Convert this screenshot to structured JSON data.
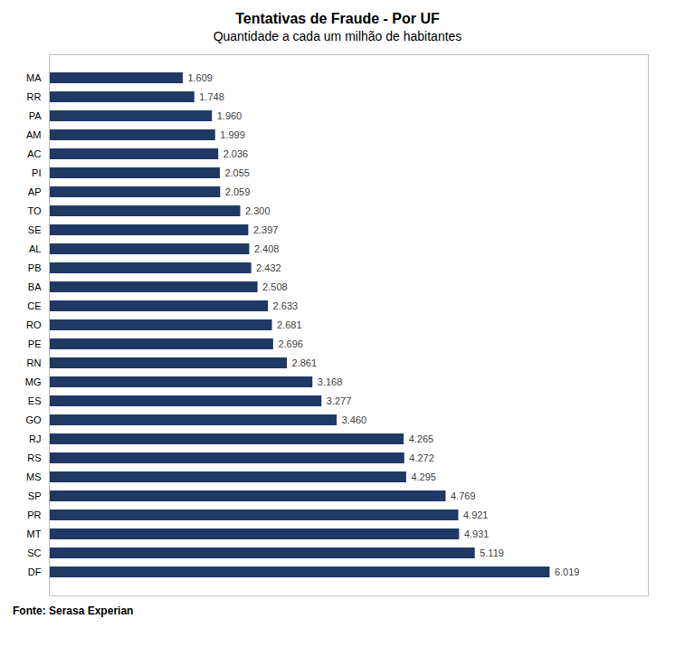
{
  "chart_data": {
    "type": "bar",
    "orientation": "horizontal",
    "title": "Tentativas de Fraude - Por UF",
    "subtitle": "Quantidade a cada um milhão de habitantes",
    "caption": "Fonte: Serasa Experian",
    "categories": [
      "MA",
      "RR",
      "PA",
      "AM",
      "AC",
      "PI",
      "AP",
      "TO",
      "SE",
      "AL",
      "PB",
      "BA",
      "CE",
      "RO",
      "PE",
      "RN",
      "MG",
      "ES",
      "GO",
      "RJ",
      "RS",
      "MS",
      "SP",
      "PR",
      "MT",
      "SC",
      "DF"
    ],
    "values": [
      1.609,
      1.748,
      1.96,
      1.999,
      2.036,
      2.055,
      2.059,
      2.3,
      2.397,
      2.408,
      2.432,
      2.508,
      2.633,
      2.681,
      2.696,
      2.861,
      3.168,
      3.277,
      3.46,
      4.265,
      4.272,
      4.295,
      4.769,
      4.921,
      4.931,
      5.119,
      6.019
    ],
    "value_labels": [
      "1.609",
      "1.748",
      "1.960",
      "1.999",
      "2.036",
      "2.055",
      "2.059",
      "2.300",
      "2.397",
      "2.408",
      "2.432",
      "2.508",
      "2.633",
      "2.681",
      "2.696",
      "2.861",
      "3.168",
      "3.277",
      "3.460",
      "4.265",
      "4.272",
      "4.295",
      "4.769",
      "4.921",
      "4.931",
      "5.119",
      "6.019"
    ],
    "color": "#1F3864",
    "xlim": [
      0,
      7.2
    ],
    "data_labels": true,
    "tick_labels": "y",
    "grid": false
  }
}
